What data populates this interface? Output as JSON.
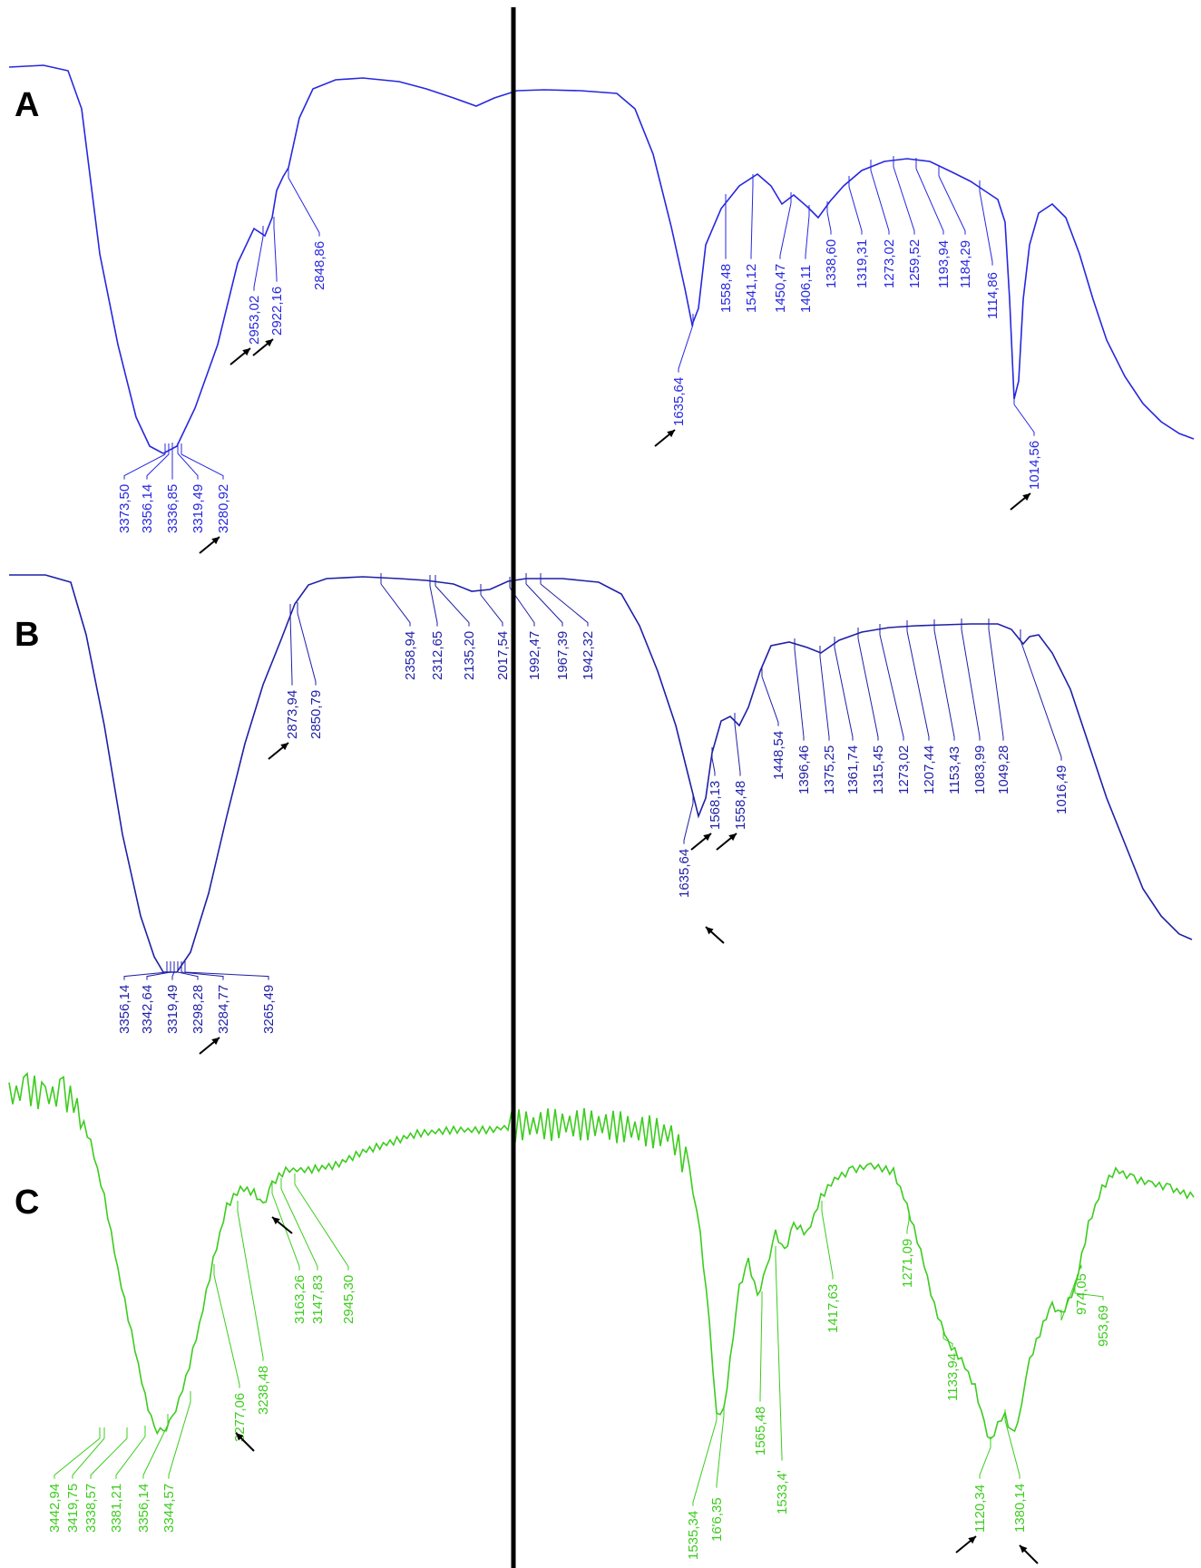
{
  "chart_data": [
    {
      "type": "line",
      "panel": "A",
      "color": "#2727e0",
      "peaks": [
        "3373,50",
        "3356,14",
        "3336,85",
        "3319,49",
        "3280,92",
        "2953,02",
        "2922,16",
        "2848,86",
        "1635,64",
        "1558,48",
        "1541,12",
        "1450,47",
        "1406,11",
        "1338,60",
        "1319,31",
        "1273,02",
        "1259,52",
        "1193,94",
        "1184,29",
        "1114,86",
        "1014,56"
      ],
      "arrowed_peaks": [
        "3280,92",
        "2953,02",
        "2922,16",
        "1635,64",
        "1014,56"
      ]
    },
    {
      "type": "line",
      "panel": "B",
      "color": "#1f1fa8",
      "peaks": [
        "3356,14",
        "3342,64",
        "3319,49",
        "3298,28",
        "3284,77",
        "3265,49",
        "2873,94",
        "2850,79",
        "2358,94",
        "2312,65",
        "2135,20",
        "2017,54",
        "1992,47",
        "1967,39",
        "1942,32",
        "1635,64",
        "1568,13",
        "1558,48",
        "1448,54",
        "1396,46",
        "1375,25",
        "1361,74",
        "1315,45",
        "1273,02",
        "1207,44",
        "1153,43",
        "1083,99",
        "1049,28",
        "1016,49"
      ],
      "arrowed_peaks": [
        "3284,77",
        "2873,94",
        "1635,64",
        "1568,13",
        "1558,48"
      ]
    },
    {
      "type": "line",
      "panel": "C",
      "color": "#3ccc1e",
      "peaks": [
        "3442,94",
        "3419,75",
        "3338,57",
        "3381,21",
        "3356,14",
        "3344,57",
        "3277,06",
        "3238,48",
        "3163,26",
        "3147,83",
        "2945,30",
        "1535,34",
        "16'6,35",
        "1565,48",
        "1533,4'",
        "1417,63",
        "1271,09",
        "1133,94",
        "1120,34",
        "1380,14",
        "974,05",
        "953,69"
      ],
      "arrowed_peaks": [
        "3277,06",
        "3163,26",
        "1120,34",
        "1380,14"
      ]
    }
  ],
  "panel_labels": {
    "a": "A",
    "b": "B",
    "c": "C"
  },
  "divider_color": "#000000",
  "arrow_color": "#000000"
}
